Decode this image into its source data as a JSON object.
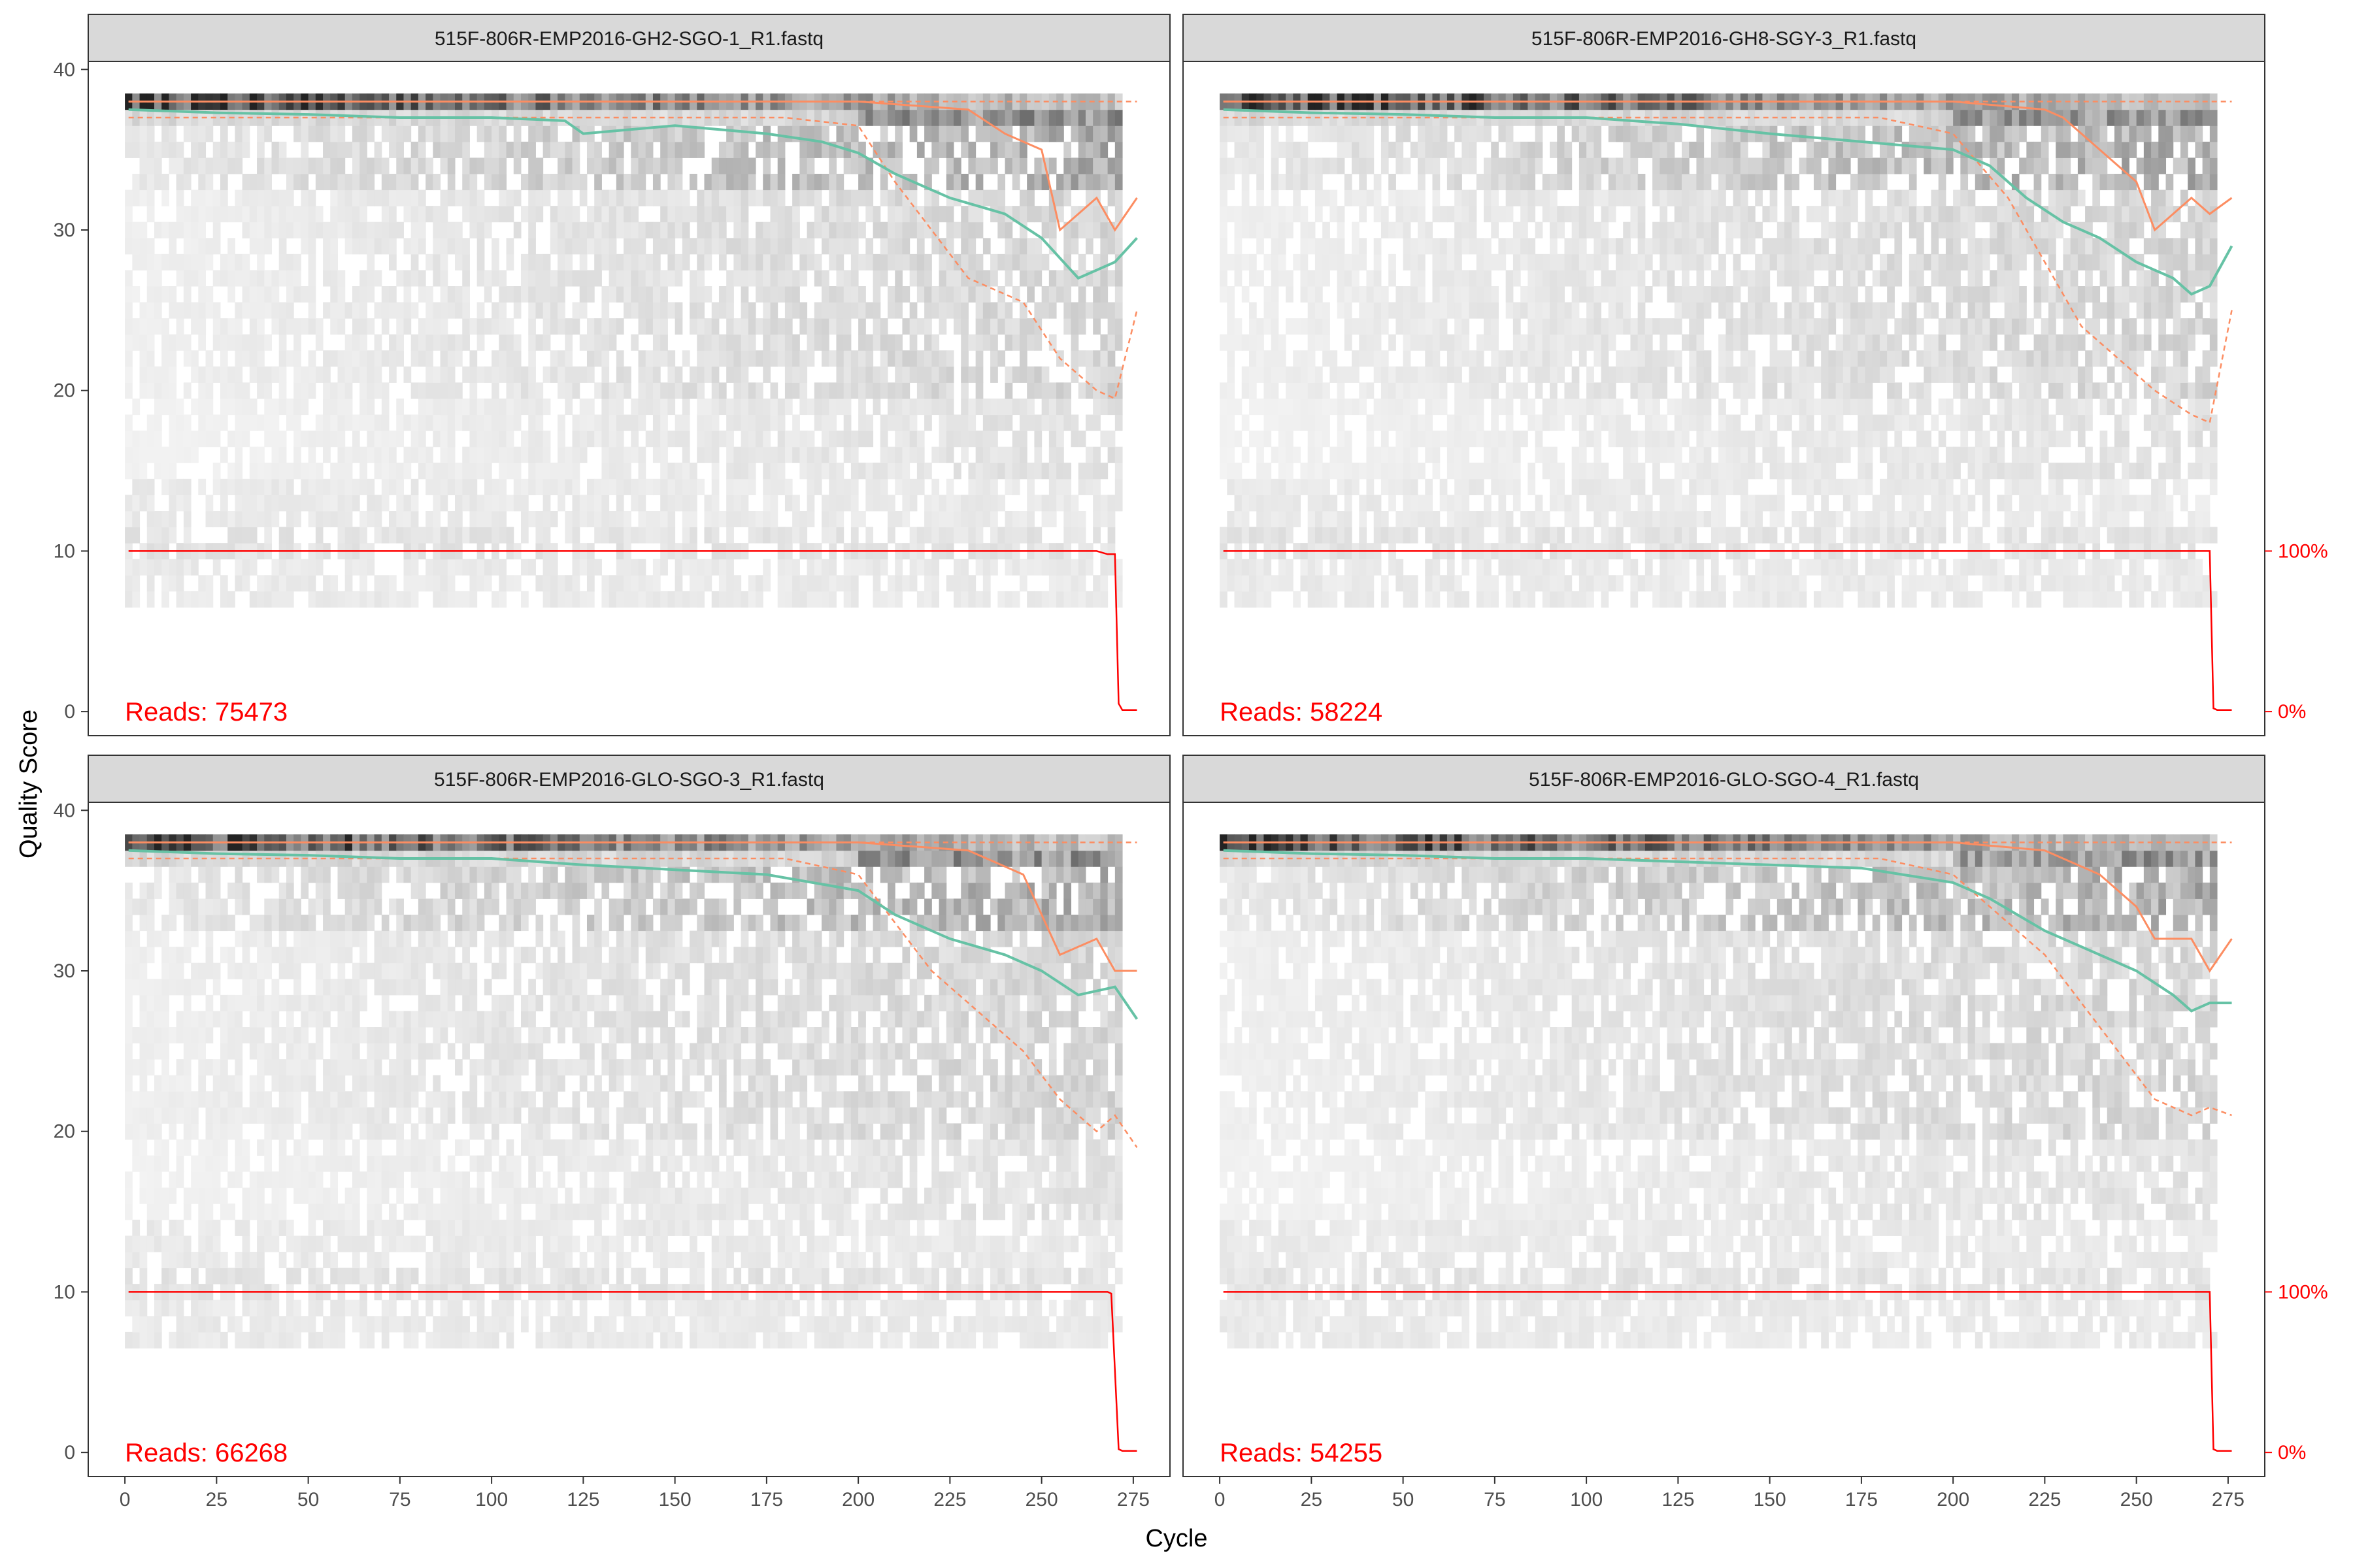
{
  "chart_data": {
    "type": "line",
    "xlabel": "Cycle",
    "ylabel": "Quality Score",
    "xlim": [
      -10,
      285
    ],
    "ylim": [
      -1.5,
      40.5
    ],
    "xticks": [
      0,
      25,
      50,
      75,
      100,
      125,
      150,
      175,
      200,
      225,
      250,
      275
    ],
    "yticks": [
      0,
      10,
      20,
      30,
      40
    ],
    "right_axis_labels": [
      "100%",
      "0%"
    ],
    "grid": false,
    "colors": {
      "mean": "#66c2a5",
      "quartile": "#fc8d62",
      "reads_fraction": "#ff0000",
      "strip_fill": "#d9d9d9",
      "heat_dark": "#333333"
    },
    "panels": [
      {
        "title": "515F-806R-EMP2016-GH2-SGO-1_R1.fastq",
        "reads_label": "Reads:  75473",
        "mean_q": [
          [
            1,
            37.5
          ],
          [
            25,
            37.3
          ],
          [
            50,
            37.2
          ],
          [
            75,
            37.0
          ],
          [
            100,
            37.0
          ],
          [
            120,
            36.8
          ],
          [
            125,
            36.0
          ],
          [
            150,
            36.5
          ],
          [
            175,
            36.0
          ],
          [
            190,
            35.5
          ],
          [
            200,
            34.8
          ],
          [
            210,
            33.5
          ],
          [
            225,
            32.0
          ],
          [
            240,
            31.0
          ],
          [
            250,
            29.5
          ],
          [
            260,
            27.0
          ],
          [
            265,
            27.5
          ],
          [
            270,
            28.0
          ],
          [
            276,
            29.5
          ]
        ],
        "median_q": [
          [
            1,
            38
          ],
          [
            200,
            38
          ],
          [
            230,
            37.5
          ],
          [
            240,
            36.0
          ],
          [
            250,
            35.0
          ],
          [
            255,
            30.0
          ],
          [
            265,
            32.0
          ],
          [
            270,
            30.0
          ],
          [
            276,
            32.0
          ]
        ],
        "q25": [
          [
            1,
            37
          ],
          [
            180,
            37
          ],
          [
            200,
            36.5
          ],
          [
            210,
            33.0
          ],
          [
            220,
            30.0
          ],
          [
            230,
            27.0
          ],
          [
            245,
            25.5
          ],
          [
            255,
            22.0
          ],
          [
            265,
            20.0
          ],
          [
            270,
            19.5
          ],
          [
            276,
            25.0
          ]
        ],
        "q75": [
          [
            1,
            38
          ],
          [
            276,
            38
          ]
        ],
        "reads_pct": [
          [
            1,
            100
          ],
          [
            265,
            100
          ],
          [
            268,
            98
          ],
          [
            270,
            98
          ],
          [
            271,
            5
          ],
          [
            272,
            1
          ],
          [
            276,
            1
          ]
        ]
      },
      {
        "title": "515F-806R-EMP2016-GH8-SGY-3_R1.fastq",
        "reads_label": "Reads:  58224",
        "mean_q": [
          [
            1,
            37.5
          ],
          [
            25,
            37.3
          ],
          [
            50,
            37.2
          ],
          [
            75,
            37.0
          ],
          [
            100,
            37.0
          ],
          [
            125,
            36.6
          ],
          [
            150,
            36.0
          ],
          [
            175,
            35.5
          ],
          [
            200,
            35.0
          ],
          [
            210,
            34.0
          ],
          [
            220,
            32.0
          ],
          [
            230,
            30.5
          ],
          [
            240,
            29.5
          ],
          [
            250,
            28.0
          ],
          [
            260,
            27.0
          ],
          [
            265,
            26.0
          ],
          [
            270,
            26.5
          ],
          [
            276,
            29.0
          ]
        ],
        "median_q": [
          [
            1,
            38
          ],
          [
            200,
            38
          ],
          [
            225,
            37.5
          ],
          [
            230,
            37.0
          ],
          [
            240,
            35.0
          ],
          [
            250,
            33.0
          ],
          [
            255,
            30.0
          ],
          [
            265,
            32.0
          ],
          [
            270,
            31.0
          ],
          [
            276,
            32.0
          ]
        ],
        "q25": [
          [
            1,
            37
          ],
          [
            180,
            37
          ],
          [
            200,
            36.0
          ],
          [
            215,
            32.0
          ],
          [
            225,
            28.0
          ],
          [
            235,
            24.0
          ],
          [
            245,
            22.0
          ],
          [
            255,
            20.0
          ],
          [
            265,
            18.5
          ],
          [
            270,
            18.0
          ],
          [
            276,
            25.0
          ]
        ],
        "q75": [
          [
            1,
            38
          ],
          [
            276,
            38
          ]
        ],
        "reads_pct": [
          [
            1,
            100
          ],
          [
            270,
            100
          ],
          [
            271,
            2
          ],
          [
            272,
            1
          ],
          [
            276,
            1
          ]
        ]
      },
      {
        "title": "515F-806R-EMP2016-GLO-SGO-3_R1.fastq",
        "reads_label": "Reads:  66268",
        "mean_q": [
          [
            1,
            37.5
          ],
          [
            25,
            37.3
          ],
          [
            50,
            37.2
          ],
          [
            75,
            37.0
          ],
          [
            100,
            37.0
          ],
          [
            125,
            36.6
          ],
          [
            150,
            36.3
          ],
          [
            175,
            36.0
          ],
          [
            200,
            35.0
          ],
          [
            210,
            33.5
          ],
          [
            225,
            32.0
          ],
          [
            240,
            31.0
          ],
          [
            250,
            30.0
          ],
          [
            260,
            28.5
          ],
          [
            270,
            29.0
          ],
          [
            276,
            27.0
          ]
        ],
        "median_q": [
          [
            1,
            38
          ],
          [
            200,
            38
          ],
          [
            230,
            37.5
          ],
          [
            245,
            36.0
          ],
          [
            255,
            31.0
          ],
          [
            265,
            32.0
          ],
          [
            270,
            30.0
          ],
          [
            276,
            30.0
          ]
        ],
        "q25": [
          [
            1,
            37
          ],
          [
            180,
            37
          ],
          [
            200,
            36.0
          ],
          [
            210,
            33.0
          ],
          [
            220,
            30.0
          ],
          [
            235,
            27.0
          ],
          [
            245,
            25.0
          ],
          [
            255,
            22.0
          ],
          [
            265,
            20.0
          ],
          [
            270,
            21.0
          ],
          [
            276,
            19.0
          ]
        ],
        "q75": [
          [
            1,
            38
          ],
          [
            276,
            38
          ]
        ],
        "reads_pct": [
          [
            1,
            100
          ],
          [
            268,
            100
          ],
          [
            269,
            99
          ],
          [
            271,
            2
          ],
          [
            272,
            1
          ],
          [
            276,
            1
          ]
        ]
      },
      {
        "title": "515F-806R-EMP2016-GLO-SGO-4_R1.fastq",
        "reads_label": "Reads:  54255",
        "mean_q": [
          [
            1,
            37.5
          ],
          [
            25,
            37.3
          ],
          [
            50,
            37.2
          ],
          [
            75,
            37.0
          ],
          [
            100,
            37.0
          ],
          [
            125,
            36.8
          ],
          [
            150,
            36.6
          ],
          [
            175,
            36.4
          ],
          [
            200,
            35.5
          ],
          [
            210,
            34.5
          ],
          [
            225,
            32.5
          ],
          [
            240,
            31.0
          ],
          [
            250,
            30.0
          ],
          [
            260,
            28.5
          ],
          [
            265,
            27.5
          ],
          [
            270,
            28.0
          ],
          [
            276,
            28.0
          ]
        ],
        "median_q": [
          [
            1,
            38
          ],
          [
            200,
            38
          ],
          [
            225,
            37.5
          ],
          [
            240,
            36.0
          ],
          [
            250,
            34.0
          ],
          [
            255,
            32.0
          ],
          [
            265,
            32.0
          ],
          [
            270,
            30.0
          ],
          [
            276,
            32.0
          ]
        ],
        "q25": [
          [
            1,
            37
          ],
          [
            180,
            37
          ],
          [
            200,
            36.0
          ],
          [
            215,
            33.0
          ],
          [
            225,
            31.0
          ],
          [
            235,
            28.0
          ],
          [
            245,
            25.0
          ],
          [
            255,
            22.0
          ],
          [
            265,
            21.0
          ],
          [
            270,
            21.5
          ],
          [
            276,
            21.0
          ]
        ],
        "q75": [
          [
            1,
            38
          ],
          [
            276,
            38
          ]
        ],
        "reads_pct": [
          [
            1,
            100
          ],
          [
            270,
            100
          ],
          [
            271,
            2
          ],
          [
            272,
            1
          ],
          [
            276,
            1
          ]
        ]
      }
    ]
  }
}
